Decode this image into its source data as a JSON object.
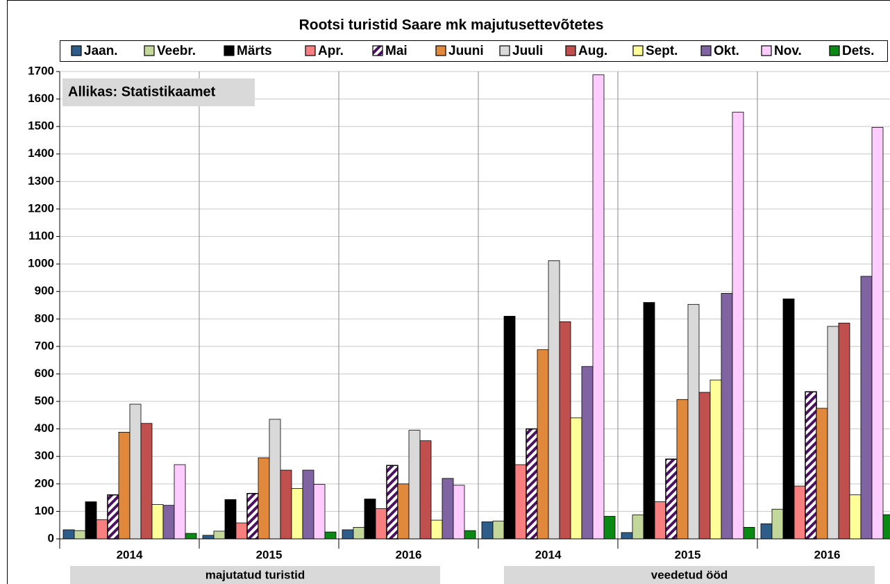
{
  "chart_data": {
    "type": "bar",
    "title": "Rootsi turistid Saare mk majutusettevõtetes",
    "annotation": "Allikas: Statistikaamet",
    "categories": [
      "2014",
      "2015",
      "2016",
      "2014",
      "2015",
      "2016"
    ],
    "category_groups": [
      "majutatud turistid",
      "veedetud ööd"
    ],
    "ylim": [
      0,
      1700
    ],
    "yticks": [
      0,
      100,
      200,
      300,
      400,
      500,
      600,
      700,
      800,
      900,
      1000,
      1100,
      1200,
      1300,
      1400,
      1500,
      1600,
      1700
    ],
    "grid": true,
    "legend": "top",
    "series": [
      {
        "name": "Jaan.",
        "color": "#2f5d8a",
        "values": [
          33,
          13,
          33,
          62,
          23,
          55
        ]
      },
      {
        "name": "Veebr.",
        "color": "#c4d79b",
        "values": [
          30,
          28,
          42,
          65,
          87,
          108
        ]
      },
      {
        "name": "Märts",
        "color": "#000000",
        "values": [
          135,
          143,
          145,
          810,
          860,
          873
        ]
      },
      {
        "name": "Apr.",
        "color": "#f87f7f",
        "values": [
          70,
          58,
          110,
          270,
          135,
          192
        ]
      },
      {
        "name": "Mai",
        "color": "#4b1060",
        "hatch": true,
        "values": [
          160,
          165,
          267,
          400,
          290,
          535
        ]
      },
      {
        "name": "Juuni",
        "color": "#e0893c",
        "values": [
          388,
          295,
          200,
          688,
          507,
          475
        ]
      },
      {
        "name": "Juuli",
        "color": "#d9d9d9",
        "values": [
          490,
          435,
          395,
          1012,
          853,
          773
        ]
      },
      {
        "name": "Aug.",
        "color": "#c0504d",
        "values": [
          420,
          250,
          357,
          790,
          533,
          785
        ]
      },
      {
        "name": "Sept.",
        "color": "#ffff99",
        "values": [
          125,
          183,
          68,
          440,
          578,
          160
        ]
      },
      {
        "name": "Okt.",
        "color": "#8064a2",
        "values": [
          122,
          250,
          220,
          627,
          893,
          955
        ]
      },
      {
        "name": "Nov.",
        "color": "#ffccff",
        "values": [
          270,
          198,
          195,
          1688,
          1552,
          1497
        ]
      },
      {
        "name": "Dets.",
        "color": "#0a8a14",
        "values": [
          20,
          25,
          30,
          82,
          42,
          88
        ]
      }
    ]
  }
}
